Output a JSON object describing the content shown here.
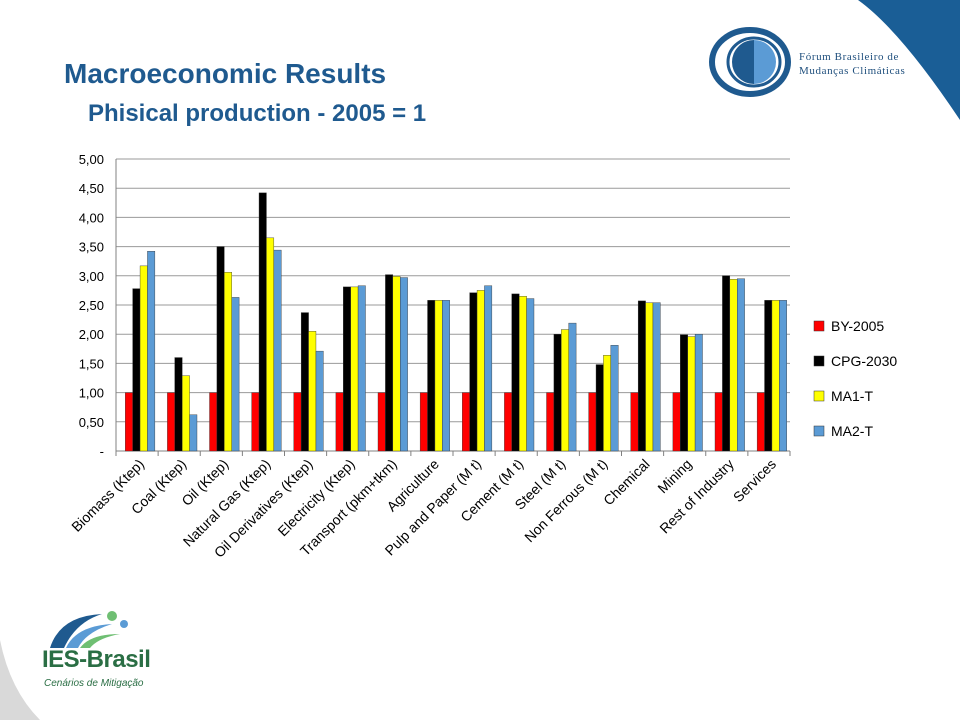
{
  "header": {
    "title": "Macroeconomic Results",
    "subtitle": "Phisical production  - 2005 = 1"
  },
  "logos": {
    "forum": {
      "line1": "Fórum Brasileiro de",
      "line2": "Mudanças Climáticas"
    },
    "ies": {
      "name": "IES-Brasil",
      "tagline": "Cenários de Mitigação"
    }
  },
  "colors": {
    "title": "#1f5a8f",
    "band": "#1a5e96"
  },
  "chart_data": {
    "type": "bar",
    "title": "",
    "xlabel": "",
    "ylabel": "",
    "ylim": [
      0,
      5
    ],
    "yticks": [
      "-",
      "0,50",
      "1,00",
      "1,50",
      "2,00",
      "2,50",
      "3,00",
      "3,50",
      "4,00",
      "4,50",
      "5,00"
    ],
    "grid": true,
    "legend_position": "right",
    "categories": [
      "Biomass (Ktep)",
      "Coal (Ktep)",
      "Oil (Ktep)",
      "Natural Gas (Ktep)",
      "Oil Derivatives (Ktep)",
      "Electricity (Ktep)",
      "Transport (pkm+tkm)",
      "Agriculture",
      "Pulp and Paper (M t)",
      "Cement (M t)",
      "Steel (M t)",
      "Non Ferrous (M t)",
      "Chemical",
      "Mining",
      "Rest of Industry",
      "Services"
    ],
    "series": [
      {
        "name": "BY-2005",
        "color": "#ff0000",
        "values": [
          1,
          1,
          1,
          1,
          1,
          1,
          1,
          1,
          1,
          1,
          1,
          1,
          1,
          1,
          1,
          1
        ]
      },
      {
        "name": "CPG-2030",
        "color": "#000000",
        "values": [
          2.78,
          1.6,
          3.5,
          4.42,
          2.37,
          2.81,
          3.02,
          2.58,
          2.71,
          2.69,
          2.0,
          1.48,
          2.57,
          1.99,
          3.0,
          2.58
        ]
      },
      {
        "name": "MA1-T",
        "color": "#ffff00",
        "values": [
          3.17,
          1.29,
          3.06,
          3.65,
          2.05,
          2.81,
          2.99,
          2.58,
          2.75,
          2.65,
          2.08,
          1.64,
          2.54,
          1.96,
          2.94,
          2.58
        ]
      },
      {
        "name": "MA2-T",
        "color": "#5b9bd5",
        "values": [
          3.42,
          0.62,
          2.63,
          3.44,
          1.71,
          2.83,
          2.97,
          2.58,
          2.83,
          2.61,
          2.19,
          1.81,
          2.54,
          2.0,
          2.95,
          2.58
        ]
      }
    ]
  }
}
